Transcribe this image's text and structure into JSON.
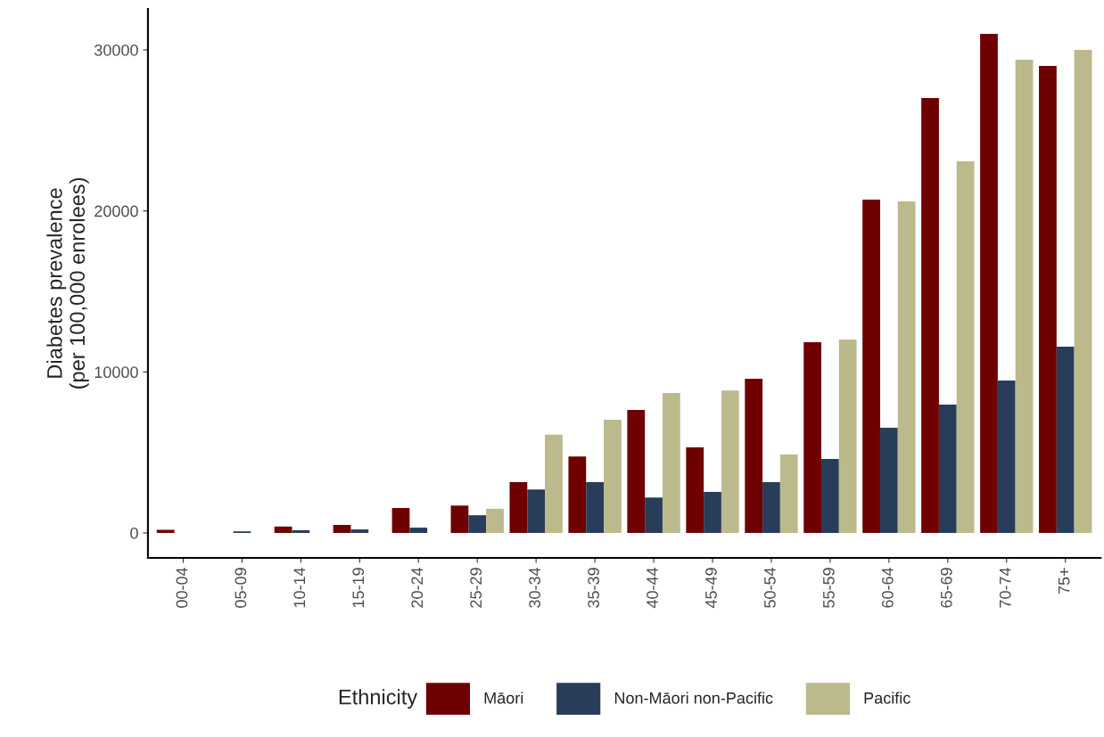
{
  "chart_data": {
    "type": "bar",
    "ylabel": "Diabetes prevalence\n(per 100,000 enrolees)",
    "legend_title": "Ethnicity",
    "categories": [
      "00-04",
      "05-09",
      "10-14",
      "15-19",
      "20-24",
      "25-29",
      "30-34",
      "35-39",
      "40-44",
      "45-49",
      "50-54",
      "55-59",
      "60-64",
      "65-69",
      "70-74",
      "75+"
    ],
    "series": [
      {
        "name": "Māori",
        "color": "#6e0000",
        "values": [
          200,
          null,
          400,
          500,
          1550,
          1700,
          3150,
          4750,
          7640,
          5310,
          9570,
          11840,
          20700,
          27010,
          30990,
          29000
        ]
      },
      {
        "name": "Non-Māori non-Pacific",
        "color": "#283d5a",
        "values": [
          null,
          100,
          170,
          220,
          330,
          1100,
          2700,
          3150,
          2200,
          2550,
          3150,
          4600,
          6530,
          7970,
          9460,
          11570
        ]
      },
      {
        "name": "Pacific",
        "color": "#bcb98d",
        "values": [
          null,
          null,
          null,
          null,
          null,
          1500,
          6100,
          7030,
          8690,
          8850,
          4870,
          12010,
          20590,
          23080,
          29390,
          30000
        ]
      }
    ],
    "ylim": [
      -1550,
      32550
    ],
    "yticks": [
      0,
      10000,
      20000,
      30000
    ],
    "grid": false,
    "legend": "bottom"
  }
}
